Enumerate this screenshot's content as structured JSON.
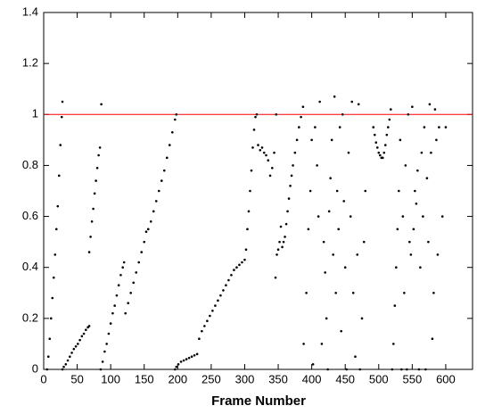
{
  "chart_data": {
    "type": "scatter",
    "x_label": "Frame Number",
    "x": [
      5,
      7,
      9,
      11,
      13,
      15,
      17,
      19,
      21,
      23,
      25,
      27,
      28,
      28,
      30,
      33,
      36,
      39,
      42,
      45,
      48,
      51,
      54,
      57,
      60,
      63,
      66,
      68,
      68,
      70,
      72,
      74,
      76,
      78,
      80,
      82,
      84,
      86,
      85,
      88,
      91,
      94,
      97,
      100,
      103,
      106,
      109,
      112,
      115,
      118,
      120,
      122,
      126,
      130,
      134,
      138,
      142,
      146,
      150,
      153,
      156,
      160,
      164,
      168,
      172,
      176,
      180,
      184,
      188,
      192,
      196,
      198,
      196,
      198,
      201,
      205,
      209,
      213,
      217,
      221,
      225,
      229,
      232,
      236,
      240,
      244,
      248,
      252,
      256,
      260,
      264,
      268,
      272,
      276,
      280,
      284,
      288,
      292,
      296,
      300,
      302,
      304,
      306,
      308,
      310,
      312,
      314,
      316,
      318,
      320,
      323,
      326,
      329,
      332,
      335,
      338,
      341,
      344,
      347,
      346,
      348,
      350,
      352,
      354,
      356,
      358,
      360,
      362,
      364,
      366,
      368,
      370,
      372,
      375,
      378,
      381,
      384,
      387,
      388,
      392,
      395,
      398,
      400,
      402,
      405,
      408,
      410,
      412,
      415,
      418,
      420,
      422,
      424,
      426,
      428,
      430,
      432,
      434,
      436,
      438,
      440,
      442,
      444,
      446,
      448,
      450,
      452,
      455,
      458,
      460,
      462,
      465,
      468,
      470,
      472,
      475,
      478,
      480,
      492,
      494,
      496,
      498,
      500,
      502,
      504,
      506,
      508,
      510,
      512,
      514,
      516,
      518,
      520,
      522,
      524,
      526,
      528,
      530,
      532,
      534,
      536,
      538,
      540,
      542,
      544,
      546,
      548,
      550,
      552,
      554,
      556,
      558,
      560,
      562,
      564,
      566,
      568,
      570,
      572,
      574,
      576,
      578,
      580,
      582,
      584,
      586,
      588,
      590,
      595,
      600
    ],
    "y": [
      0,
      0.05,
      0.12,
      0.2,
      0.28,
      0.36,
      0.45,
      0.55,
      0.64,
      0.76,
      0.88,
      0.99,
      1.05,
      0,
      0.01,
      0.02,
      0.035,
      0.05,
      0.065,
      0.08,
      0.09,
      0.1,
      0.115,
      0.13,
      0.14,
      0.155,
      0.165,
      0.17,
      0.46,
      0.52,
      0.58,
      0.63,
      0.69,
      0.74,
      0.79,
      0.84,
      0.87,
      1.04,
      0,
      0.03,
      0.07,
      0.1,
      0.14,
      0.18,
      0.22,
      0.25,
      0.29,
      0.33,
      0.37,
      0.4,
      0.42,
      0.22,
      0.26,
      0.3,
      0.34,
      0.38,
      0.42,
      0.46,
      0.5,
      0.54,
      0.55,
      0.58,
      0.62,
      0.66,
      0.7,
      0.74,
      0.78,
      0.83,
      0.88,
      0.93,
      0.98,
      1.0,
      0,
      0.01,
      0.02,
      0.03,
      0.035,
      0.04,
      0.045,
      0.05,
      0.055,
      0.06,
      0.12,
      0.15,
      0.17,
      0.19,
      0.21,
      0.23,
      0.25,
      0.27,
      0.29,
      0.31,
      0.33,
      0.35,
      0.37,
      0.39,
      0.4,
      0.41,
      0.42,
      0.43,
      0.47,
      0.55,
      0.62,
      0.7,
      0.78,
      0.87,
      0.94,
      0.99,
      1.0,
      0.88,
      0.86,
      0.87,
      0.85,
      0.84,
      0.82,
      0.76,
      0.79,
      0.85,
      1.0,
      0.36,
      0.45,
      0.47,
      0.5,
      0.56,
      0.48,
      0.5,
      0.52,
      0.57,
      0.62,
      0.67,
      0.72,
      0.76,
      0.8,
      0.85,
      0.9,
      0.95,
      0.99,
      1.03,
      0.1,
      0.3,
      0.55,
      0.7,
      0.9,
      0.02,
      0.95,
      0.8,
      0.6,
      1.05,
      0.1,
      0.5,
      0.38,
      0.2,
      0,
      0.62,
      0.75,
      0.9,
      0.45,
      1.07,
      0.3,
      0.7,
      0.55,
      0.95,
      0.15,
      1.0,
      0.66,
      0.4,
      0,
      0.85,
      0.6,
      1.05,
      0.3,
      0.05,
      0.45,
      1.04,
      0,
      0.2,
      0.5,
      0.7,
      0.95,
      0.92,
      0.89,
      0.87,
      0.85,
      0.84,
      0.83,
      0.83,
      0.85,
      0.88,
      0.92,
      0.95,
      0.98,
      1.02,
      0,
      0.1,
      0.25,
      0.4,
      0.55,
      0.7,
      0.9,
      0,
      0.6,
      0.3,
      0.8,
      0,
      1.0,
      0.5,
      0.45,
      1.03,
      0.55,
      0.7,
      0.65,
      0.78,
      0,
      0.4,
      0.85,
      0.6,
      0.95,
      0,
      0.75,
      0.5,
      1.04,
      0.85,
      0.12,
      0.3,
      1.02,
      0.9,
      0.45,
      0.95,
      0.6,
      0.95
    ],
    "color": "#000000",
    "reference_line": 1,
    "reference_color": "#ff0000",
    "xlim": [
      0,
      640
    ],
    "xticks": [
      0,
      50,
      100,
      150,
      200,
      250,
      300,
      350,
      400,
      450,
      500,
      550,
      600
    ],
    "ylim": [
      0,
      1.4
    ],
    "yticks": [
      0,
      0.2,
      0.4,
      0.6,
      0.8,
      1,
      1.2,
      1.4
    ],
    "grid": false
  }
}
